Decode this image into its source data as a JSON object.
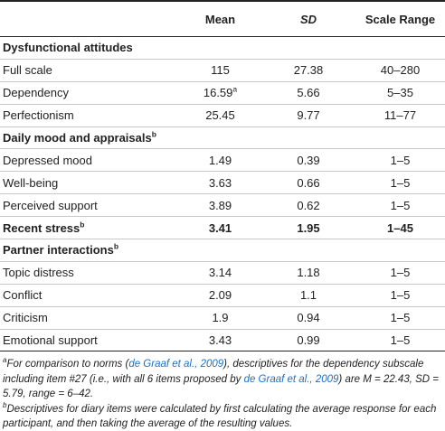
{
  "table": {
    "headers": {
      "label": "",
      "mean": "Mean",
      "sd": "SD",
      "range": "Scale Range"
    },
    "rows": [
      {
        "kind": "section",
        "label": "Dysfunctional attitudes",
        "sup": "",
        "mean": "",
        "sd": "",
        "range": ""
      },
      {
        "kind": "data",
        "label": "Full scale",
        "mean": "115",
        "mean_sup": "",
        "sd": "27.38",
        "range": "40–280"
      },
      {
        "kind": "data",
        "label": "Dependency",
        "mean": "16.59",
        "mean_sup": "a",
        "sd": "5.66",
        "range": "5–35"
      },
      {
        "kind": "data",
        "label": "Perfectionism",
        "mean": "25.45",
        "mean_sup": "",
        "sd": "9.77",
        "range": "11–77"
      },
      {
        "kind": "section",
        "label": "Daily mood and appraisals",
        "sup": "b",
        "mean": "",
        "sd": "",
        "range": ""
      },
      {
        "kind": "data",
        "label": "Depressed mood",
        "mean": "1.49",
        "mean_sup": "",
        "sd": "0.39",
        "range": "1–5"
      },
      {
        "kind": "data",
        "label": "Well-being",
        "mean": "3.63",
        "mean_sup": "",
        "sd": "0.66",
        "range": "1–5"
      },
      {
        "kind": "data",
        "label": "Perceived support",
        "mean": "3.89",
        "mean_sup": "",
        "sd": "0.62",
        "range": "1–5"
      },
      {
        "kind": "section",
        "label": "Recent stress",
        "sup": "b",
        "mean": "3.41",
        "sd": "1.95",
        "range": "1–45"
      },
      {
        "kind": "section",
        "label": "Partner interactions",
        "sup": "b",
        "mean": "",
        "sd": "",
        "range": ""
      },
      {
        "kind": "data",
        "label": "Topic distress",
        "mean": "3.14",
        "mean_sup": "",
        "sd": "1.18",
        "range": "1–5"
      },
      {
        "kind": "data",
        "label": "Conflict",
        "mean": "2.09",
        "mean_sup": "",
        "sd": "1.1",
        "range": "1–5"
      },
      {
        "kind": "data",
        "label": "Criticism",
        "mean": "1.9",
        "mean_sup": "",
        "sd": "0.94",
        "range": "1–5"
      },
      {
        "kind": "data",
        "label": "Emotional support",
        "mean": "3.43",
        "mean_sup": "",
        "sd": "0.99",
        "range": "1–5"
      }
    ]
  },
  "footnotes": {
    "a": {
      "marker": "a",
      "text_1": "For comparison to norms (",
      "cite_1": "de Graaf et al., 2009",
      "text_2": "), descriptives for the dependency subscale including item #27 (i.e., with all 6 items proposed by ",
      "cite_2": "de Graaf et al., 2009",
      "text_3": ") are M = 22.43, SD = 5.79, range = 6–42."
    },
    "b": {
      "marker": "b",
      "text": "Descriptives for diary items were calculated by first calculating the average response for each participant, and then taking the average of the resulting values."
    }
  },
  "colors": {
    "text": "#222222",
    "citation_link": "#1f6fbf",
    "rule_dark": "#222222",
    "rule_light": "#c8c8c8"
  }
}
